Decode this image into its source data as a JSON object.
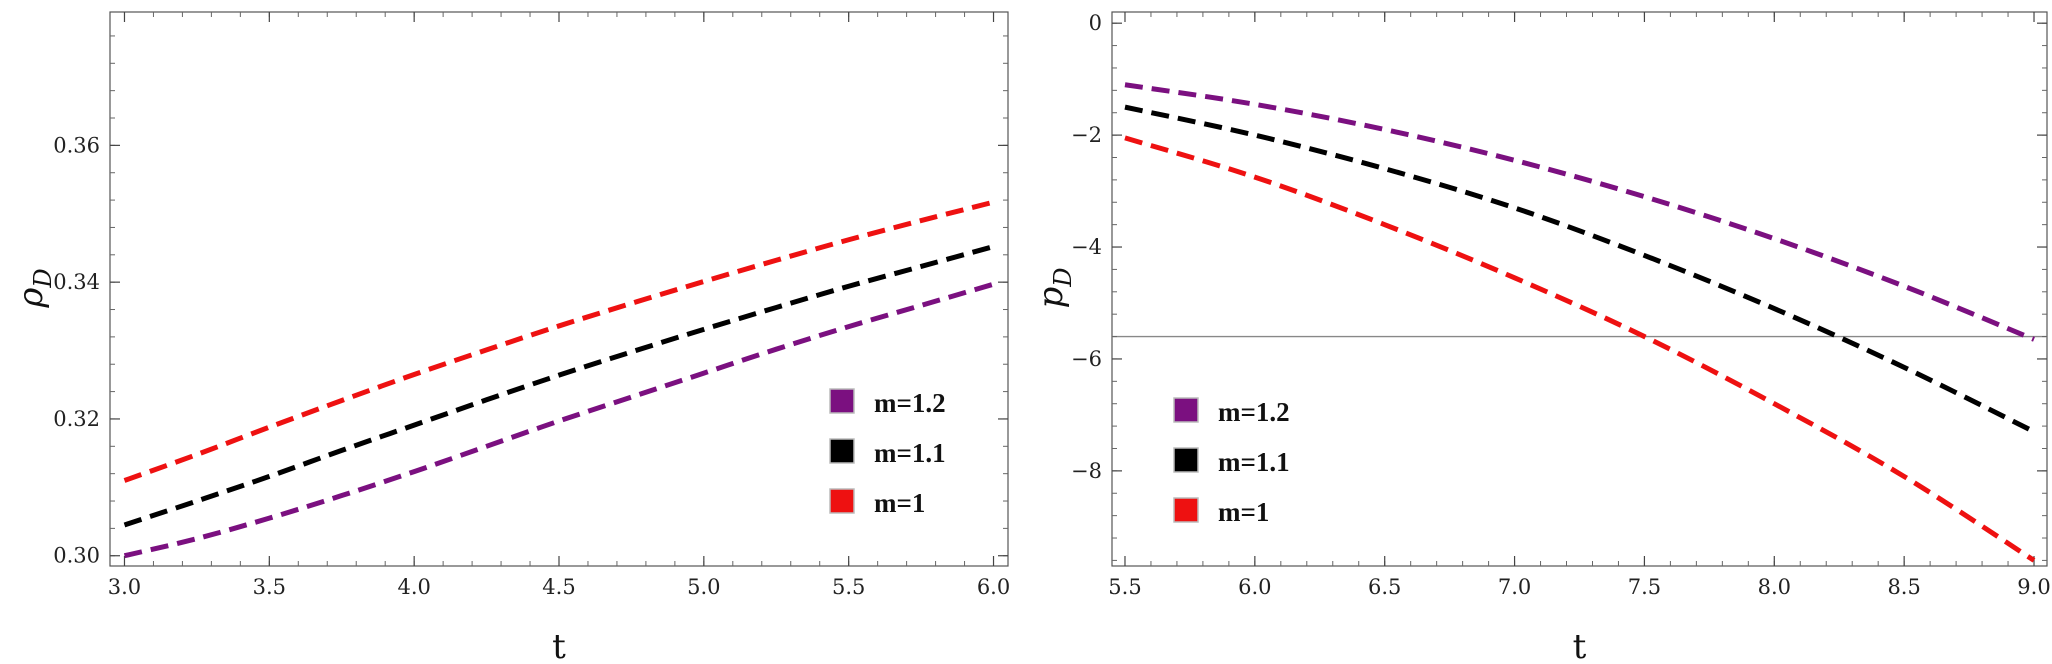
{
  "colors": {
    "m12": "#7b1080",
    "m11": "#000000",
    "m1": "#ee1111"
  },
  "chart_data": [
    {
      "type": "line",
      "xlabel": "t",
      "ylabel": {
        "main": "ρ",
        "sub": "D"
      },
      "xlim": [
        2.95,
        6.05
      ],
      "ylim": [
        0.2985,
        0.3795
      ],
      "xticks": [
        3.0,
        3.5,
        4.0,
        4.5,
        5.0,
        5.5,
        6.0
      ],
      "xtick_labels": [
        "3.0",
        "3.5",
        "4.0",
        "4.5",
        "5.0",
        "5.5",
        "6.0"
      ],
      "yticks": [
        0.3,
        0.32,
        0.34,
        0.36
      ],
      "ytick_labels": [
        "0.30",
        "0.32",
        "0.34",
        "0.36"
      ],
      "legend_position": "bottom-right",
      "series": [
        {
          "name": "m=1.2",
          "color": "#7b1080",
          "x": [
            3.0,
            3.25,
            3.5,
            3.75,
            4.0,
            4.25,
            4.5,
            4.75,
            5.0,
            5.25,
            5.5,
            5.75,
            6.0
          ],
          "y": [
            0.3,
            0.3025,
            0.3055,
            0.3088,
            0.3123,
            0.316,
            0.3197,
            0.3232,
            0.3267,
            0.3302,
            0.3335,
            0.3366,
            0.3397
          ]
        },
        {
          "name": "m=1.1",
          "color": "#000000",
          "x": [
            3.0,
            3.25,
            3.5,
            3.75,
            4.0,
            4.25,
            4.5,
            4.75,
            5.0,
            5.25,
            5.5,
            5.75,
            6.0
          ],
          "y": [
            0.3045,
            0.308,
            0.3116,
            0.3154,
            0.3191,
            0.3228,
            0.3264,
            0.3298,
            0.3331,
            0.3363,
            0.3394,
            0.3423,
            0.3452
          ]
        },
        {
          "name": "m=1",
          "color": "#ee1111",
          "x": [
            3.0,
            3.25,
            3.5,
            3.75,
            4.0,
            4.25,
            4.5,
            4.75,
            5.0,
            5.25,
            5.5,
            5.75,
            6.0
          ],
          "y": [
            0.311,
            0.3148,
            0.3188,
            0.3227,
            0.3265,
            0.3301,
            0.3336,
            0.3369,
            0.3401,
            0.3432,
            0.3462,
            0.349,
            0.3517
          ]
        }
      ]
    },
    {
      "type": "line",
      "xlabel": "t",
      "ylabel": {
        "main": "p",
        "sub": "D"
      },
      "xlim": [
        5.45,
        9.05
      ],
      "ylim": [
        -9.7,
        0.2
      ],
      "xticks": [
        5.5,
        6.0,
        6.5,
        7.0,
        7.5,
        8.0,
        8.5,
        9.0
      ],
      "xtick_labels": [
        "5.5",
        "6.0",
        "6.5",
        "7.0",
        "7.5",
        "8.0",
        "8.5",
        "9.0"
      ],
      "yticks": [
        0,
        -2,
        -4,
        -6,
        -8
      ],
      "ytick_labels": [
        "0",
        "−2",
        "−4",
        "−6",
        "−8"
      ],
      "hline": -5.6,
      "legend_position": "bottom-left",
      "series": [
        {
          "name": "m=1.2",
          "color": "#7b1080",
          "x": [
            5.5,
            6.0,
            6.5,
            7.0,
            7.5,
            8.0,
            8.5,
            9.0
          ],
          "y": [
            -1.1,
            -1.45,
            -1.9,
            -2.45,
            -3.1,
            -3.85,
            -4.7,
            -5.65
          ]
        },
        {
          "name": "m=1.1",
          "color": "#000000",
          "x": [
            5.5,
            6.0,
            6.5,
            7.0,
            7.5,
            8.0,
            8.5,
            9.0
          ],
          "y": [
            -1.5,
            -2.0,
            -2.6,
            -3.3,
            -4.15,
            -5.1,
            -6.15,
            -7.3
          ]
        },
        {
          "name": "m=1",
          "color": "#ee1111",
          "x": [
            5.5,
            6.0,
            6.5,
            7.0,
            7.5,
            8.0,
            8.5,
            9.0
          ],
          "y": [
            -2.05,
            -2.75,
            -3.6,
            -4.55,
            -5.6,
            -6.8,
            -8.1,
            -9.6
          ]
        }
      ]
    }
  ]
}
